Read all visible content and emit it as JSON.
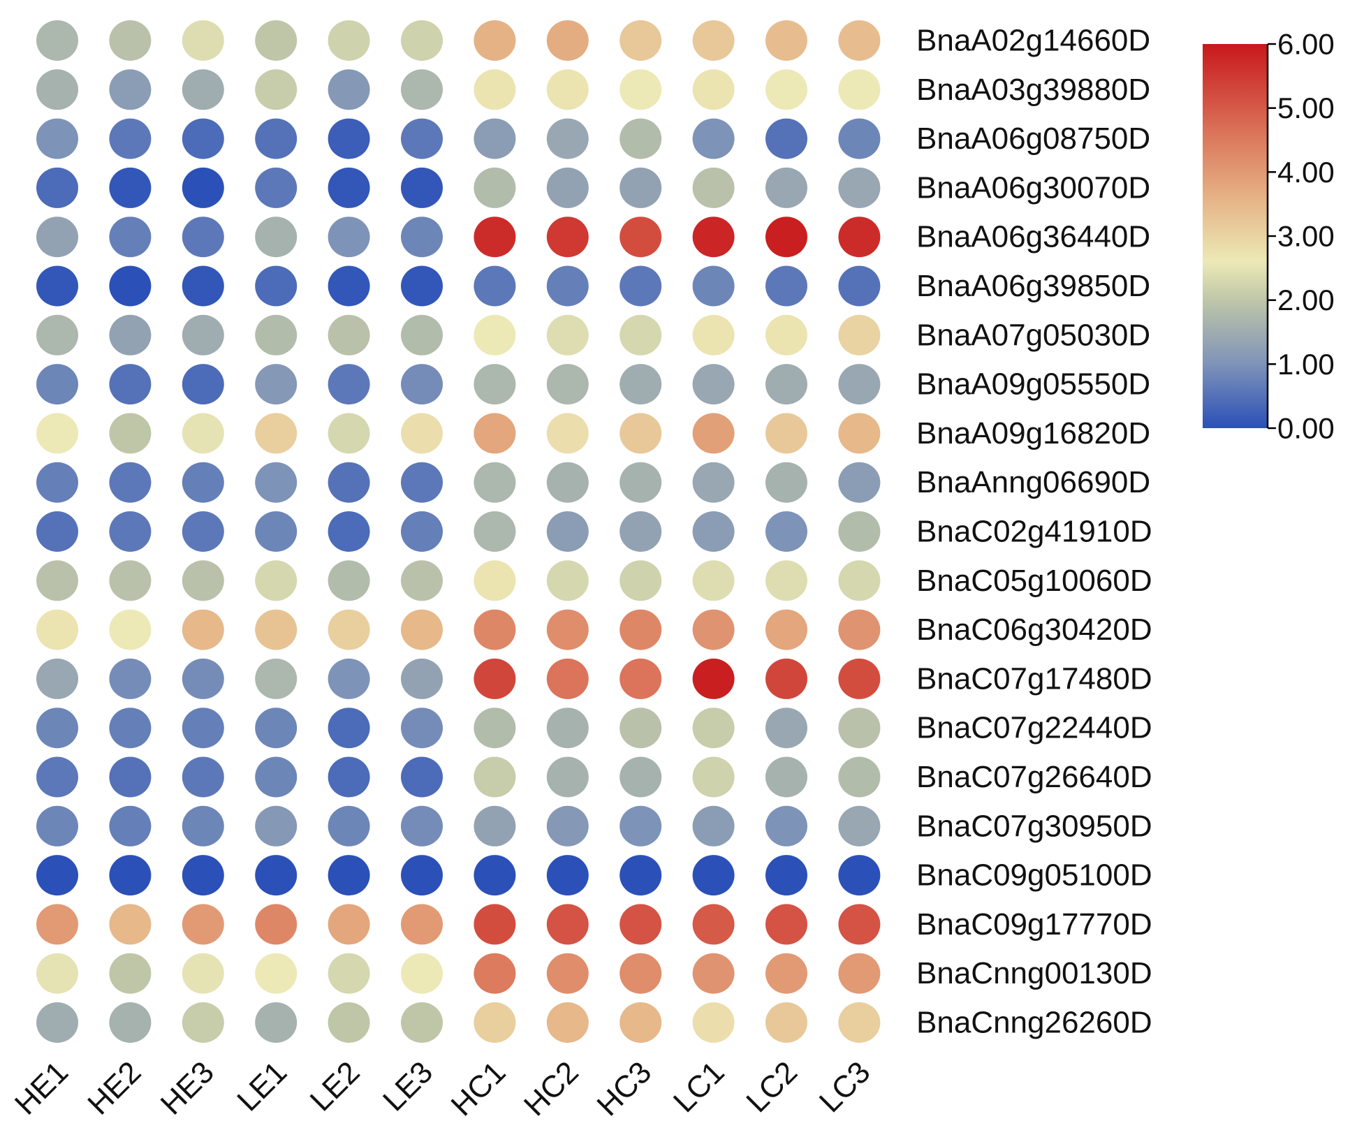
{
  "chart_data": {
    "type": "heatmap",
    "title": "",
    "xlabel": "",
    "ylabel": "",
    "marker": "circle",
    "columns": [
      "HE1",
      "HE2",
      "HE3",
      "LE1",
      "LE2",
      "LE3",
      "HC1",
      "HC2",
      "HC3",
      "LC1",
      "LC2",
      "LC3"
    ],
    "rows": [
      "BnaA02g14660D",
      "BnaA03g39880D",
      "BnaA06g08750D",
      "BnaA06g30070D",
      "BnaA06g36440D",
      "BnaA06g39850D",
      "BnaA07g05030D",
      "BnaA09g05550D",
      "BnaA09g16820D",
      "BnaAnng06690D",
      "BnaC02g41910D",
      "BnaC05g10060D",
      "BnaC06g30420D",
      "BnaC07g17480D",
      "BnaC07g22440D",
      "BnaC07g26640D",
      "BnaC07g30950D",
      "BnaC09g05100D",
      "BnaC09g17770D",
      "BnaCnng00130D",
      "BnaCnng26260D"
    ],
    "values": [
      [
        1.7,
        1.9,
        2.4,
        2.0,
        2.2,
        2.2,
        3.6,
        3.7,
        3.2,
        3.2,
        3.4,
        3.4
      ],
      [
        1.6,
        1.2,
        1.5,
        2.1,
        1.1,
        1.7,
        2.7,
        2.7,
        2.6,
        2.7,
        2.6,
        2.6
      ],
      [
        1.0,
        0.6,
        0.4,
        0.5,
        0.2,
        0.6,
        1.2,
        1.4,
        1.8,
        1.0,
        0.5,
        0.8
      ],
      [
        0.4,
        0.1,
        0.0,
        0.6,
        0.1,
        0.1,
        1.8,
        1.3,
        1.3,
        1.9,
        1.4,
        1.4
      ],
      [
        1.3,
        0.7,
        0.6,
        1.6,
        1.0,
        0.8,
        5.7,
        5.5,
        5.2,
        5.8,
        5.9,
        5.7
      ],
      [
        0.1,
        0.0,
        0.1,
        0.4,
        0.1,
        0.1,
        0.6,
        0.7,
        0.6,
        0.8,
        0.6,
        0.5
      ],
      [
        1.7,
        1.3,
        1.5,
        1.8,
        1.9,
        1.8,
        2.6,
        2.4,
        2.3,
        2.7,
        2.7,
        3.0
      ],
      [
        0.8,
        0.5,
        0.4,
        1.1,
        0.6,
        0.9,
        1.7,
        1.7,
        1.5,
        1.4,
        1.5,
        1.4
      ],
      [
        2.6,
        2.0,
        2.5,
        3.1,
        2.3,
        2.8,
        3.8,
        2.8,
        3.2,
        3.9,
        3.2,
        3.5
      ],
      [
        0.7,
        0.6,
        0.7,
        1.0,
        0.5,
        0.6,
        1.7,
        1.6,
        1.6,
        1.4,
        1.6,
        1.2
      ],
      [
        0.5,
        0.6,
        0.6,
        0.8,
        0.4,
        0.7,
        1.7,
        1.2,
        1.3,
        1.2,
        1.0,
        1.8
      ],
      [
        1.9,
        1.9,
        1.9,
        2.3,
        1.8,
        1.9,
        2.7,
        2.3,
        2.2,
        2.4,
        2.4,
        2.3
      ],
      [
        2.7,
        2.6,
        3.5,
        3.3,
        3.1,
        3.5,
        4.3,
        4.2,
        4.3,
        4.1,
        3.8,
        4.1
      ],
      [
        1.4,
        0.9,
        0.9,
        1.7,
        1.0,
        1.3,
        5.3,
        4.6,
        4.6,
        5.9,
        5.3,
        5.2
      ],
      [
        0.8,
        0.7,
        0.7,
        0.8,
        0.4,
        0.9,
        1.8,
        1.6,
        1.9,
        2.1,
        1.4,
        1.9
      ],
      [
        0.6,
        0.5,
        0.6,
        0.8,
        0.4,
        0.4,
        2.1,
        1.6,
        1.6,
        2.2,
        1.6,
        1.8
      ],
      [
        0.8,
        0.7,
        0.8,
        1.1,
        0.8,
        0.9,
        1.3,
        1.1,
        1.0,
        1.2,
        1.0,
        1.4
      ],
      [
        0.0,
        0.0,
        0.0,
        0.0,
        0.0,
        0.0,
        0.0,
        0.0,
        0.0,
        0.0,
        0.0,
        0.0
      ],
      [
        4.0,
        3.5,
        4.0,
        4.3,
        3.8,
        4.0,
        5.2,
        5.1,
        5.1,
        5.0,
        5.1,
        5.1
      ],
      [
        2.5,
        2.0,
        2.5,
        2.6,
        2.3,
        2.6,
        4.5,
        4.2,
        4.2,
        4.1,
        4.0,
        4.0
      ],
      [
        1.5,
        1.6,
        2.1,
        1.6,
        2.0,
        2.0,
        3.1,
        3.5,
        3.5,
        2.8,
        3.2,
        3.1
      ]
    ],
    "color_scale": {
      "min": 0,
      "max": 6,
      "tick_labels": [
        "6.00",
        "5.00",
        "4.00",
        "3.00",
        "2.00",
        "1.00",
        "0.00"
      ],
      "tick_values": [
        6,
        5,
        4,
        3,
        2,
        1,
        0
      ],
      "stops": [
        {
          "value": 0,
          "color": "#2b50b8"
        },
        {
          "value": 1,
          "color": "#7e93b8"
        },
        {
          "value": 2,
          "color": "#bfc6a8"
        },
        {
          "value": 2.6,
          "color": "#ece9b6"
        },
        {
          "value": 3.5,
          "color": "#e6b88a"
        },
        {
          "value": 4.5,
          "color": "#dc7b5e"
        },
        {
          "value": 6,
          "color": "#c8181c"
        }
      ]
    },
    "legend_position": "top-right",
    "grid": false
  }
}
